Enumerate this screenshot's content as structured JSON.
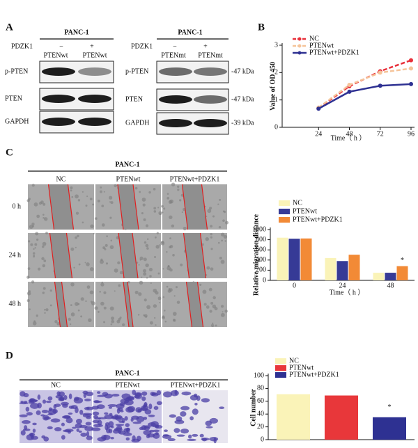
{
  "panel_labels": [
    "A",
    "B",
    "C",
    "D"
  ],
  "panel_a": {
    "left": {
      "title": "PANC-1",
      "row_header": "PDZK1",
      "signs": [
        "−",
        "+"
      ],
      "lanes": [
        "PTENwt",
        "PTENwt"
      ],
      "rows": [
        "p-PTEN",
        "PTEN",
        "GAPDH"
      ]
    },
    "right": {
      "title": "PANC-1",
      "row_header": "PDZK1",
      "signs": [
        "−",
        "+"
      ],
      "lanes": [
        "PTENmt",
        "PTENmt"
      ],
      "rows": [
        "p-PTEN",
        "PTEN",
        "GAPDH"
      ],
      "sizes": [
        "-47 kDa",
        "-47 kDa",
        "-39 kDa"
      ]
    }
  },
  "panel_c": {
    "title": "PANC-1",
    "columns": [
      "NC",
      "PTENwt",
      "PTENwt+PDZK1"
    ],
    "rows": [
      "0 h",
      "24 h",
      "48 h"
    ]
  },
  "panel_d": {
    "title": "PANC-1",
    "columns": [
      "NC",
      "PTENwt",
      "PTENwt+PDZK1"
    ]
  },
  "chart_data": [
    {
      "type": "line",
      "x": [
        24,
        48,
        72,
        96
      ],
      "xlim": [
        0,
        96
      ],
      "xticks": [
        24,
        48,
        72,
        96
      ],
      "ylim": [
        0,
        3
      ],
      "yticks": [
        0,
        1,
        2,
        3
      ],
      "y_label": "Value of OD 450",
      "x_label": "Time（ h ）",
      "series": [
        {
          "name": "NC",
          "color": "#e8303a",
          "dashed": true,
          "values": [
            0.7,
            1.5,
            2.05,
            2.45
          ]
        },
        {
          "name": "PTENwt",
          "color": "#f5c49a",
          "dashed": true,
          "values": [
            0.72,
            1.55,
            2.0,
            2.15
          ]
        },
        {
          "name": "PTENwt+PDZK1",
          "color": "#2e3192",
          "dashed": false,
          "values": [
            0.68,
            1.3,
            1.52,
            1.58
          ]
        }
      ]
    },
    {
      "type": "bar",
      "categories": [
        "0",
        "24",
        "48"
      ],
      "ylim": [
        0,
        1000
      ],
      "yticks": [
        0,
        200,
        400,
        600,
        800,
        1000
      ],
      "y_label": "Relative migration distance",
      "x_label": "Time（ h ）",
      "annotation": "*",
      "series": [
        {
          "name": "NC",
          "color": "#faf3b8",
          "values": [
            840,
            440,
            150
          ]
        },
        {
          "name": "PTENwt",
          "color": "#363a96",
          "values": [
            820,
            380,
            150
          ]
        },
        {
          "name": "PTENwt+PDZK1",
          "color": "#f28a36",
          "values": [
            825,
            505,
            280
          ]
        }
      ]
    },
    {
      "type": "bar",
      "categories": [
        null
      ],
      "ylim": [
        0,
        100
      ],
      "yticks": [
        0,
        20,
        40,
        60,
        80,
        100
      ],
      "y_label": "Cell number",
      "annotation": "*",
      "series": [
        {
          "name": "NC",
          "color": "#faf3b8",
          "values": [
            71
          ]
        },
        {
          "name": "PTENwt",
          "color": "#e8373a",
          "values": [
            69
          ]
        },
        {
          "name": "PTENwt+PDZK1",
          "color": "#2e3192",
          "values": [
            35
          ]
        }
      ]
    }
  ]
}
